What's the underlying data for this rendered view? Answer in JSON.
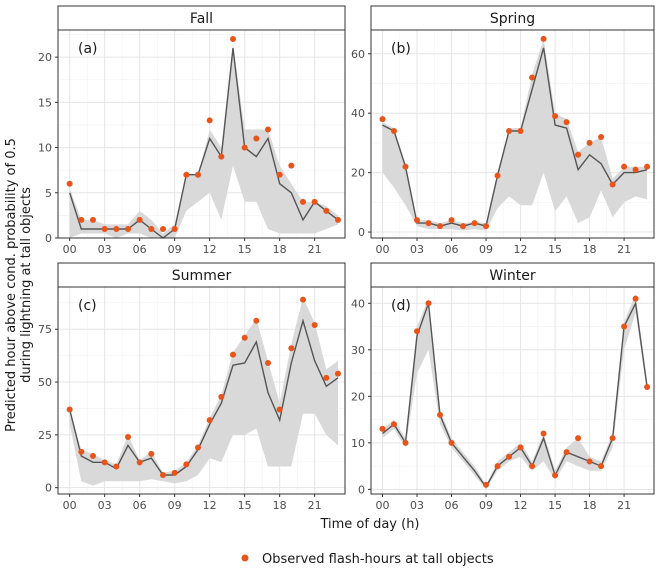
{
  "figure": {
    "xlabel": "Time of day (h)",
    "ylabel_line1": "Predicted hour above cond. probability of 0.5",
    "ylabel_line2": "during lightning at tall objects",
    "legend_label": "Observed flash-hours at tall objects",
    "colors": {
      "ribbon": "#d9d9d9",
      "line": "#555555",
      "point": "#e8541a",
      "grid_major": "#e5e5e5",
      "grid_minor": "#f2f2f2",
      "strip_fill": "#ffffff",
      "border": "#333333"
    }
  },
  "chart_data": [
    {
      "type": "line",
      "title": "Fall",
      "tag": "(a)",
      "xlim": [
        -1,
        23.6
      ],
      "ylim": [
        0,
        23
      ],
      "x_ticks": [
        0,
        3,
        6,
        9,
        12,
        15,
        18,
        21
      ],
      "x_tick_labels": [
        "00",
        "03",
        "06",
        "09",
        "12",
        "15",
        "18",
        "21"
      ],
      "y_ticks": [
        0,
        5,
        10,
        15,
        20
      ],
      "x": [
        0,
        1,
        2,
        3,
        4,
        5,
        6,
        7,
        8,
        9,
        10,
        11,
        12,
        13,
        14,
        15,
        16,
        17,
        18,
        19,
        20,
        21,
        22,
        23
      ],
      "observed": [
        6,
        2,
        2,
        1,
        1,
        1,
        2,
        1,
        1,
        1,
        7,
        7,
        13,
        9,
        22,
        10,
        11,
        12,
        7,
        8,
        4,
        4,
        3,
        2
      ],
      "predicted": [
        5,
        1,
        1,
        1,
        1,
        1,
        2,
        1,
        0,
        1,
        7,
        7,
        11,
        9,
        21,
        10,
        9,
        11,
        6,
        5,
        2,
        4,
        3,
        2
      ],
      "lower": [
        0,
        0.5,
        0.5,
        0.5,
        0,
        0.5,
        0.5,
        0,
        0,
        0,
        3,
        4,
        5,
        2,
        8,
        4,
        4,
        1,
        0.5,
        0.5,
        0.5,
        0.5,
        1,
        1.5
      ],
      "upper": [
        5.5,
        2,
        2,
        1.5,
        1.5,
        1.5,
        3,
        2,
        0.5,
        1.5,
        7,
        7,
        12,
        10,
        21.5,
        12,
        12,
        12,
        8,
        6,
        4,
        4,
        3.5,
        2.5
      ]
    },
    {
      "type": "line",
      "title": "Spring",
      "tag": "(b)",
      "xlim": [
        -1,
        23.6
      ],
      "ylim": [
        -2,
        68
      ],
      "x_ticks": [
        0,
        3,
        6,
        9,
        12,
        15,
        18,
        21
      ],
      "x_tick_labels": [
        "00",
        "03",
        "06",
        "09",
        "12",
        "15",
        "18",
        "21"
      ],
      "y_ticks": [
        0,
        20,
        40,
        60
      ],
      "x": [
        0,
        1,
        2,
        3,
        4,
        5,
        6,
        7,
        8,
        9,
        10,
        11,
        12,
        13,
        14,
        15,
        16,
        17,
        18,
        19,
        20,
        21,
        22,
        23
      ],
      "observed": [
        38,
        34,
        22,
        4,
        3,
        2,
        4,
        2,
        3,
        2,
        19,
        34,
        34,
        52,
        65,
        39,
        37,
        26,
        30,
        32,
        16,
        22,
        21,
        22
      ],
      "predicted": [
        36,
        34,
        22,
        3,
        3,
        2,
        3,
        2,
        3,
        2,
        19,
        34,
        34,
        48,
        62,
        36,
        35,
        21,
        26,
        23,
        16,
        20,
        20,
        21
      ],
      "lower": [
        20,
        15,
        9,
        2,
        1,
        1,
        1,
        0.5,
        1,
        0.5,
        8,
        12,
        9,
        9,
        20,
        7,
        12,
        3,
        5,
        14,
        5,
        10,
        12,
        11
      ],
      "upper": [
        37,
        35,
        23,
        4,
        4,
        3,
        4,
        3,
        3.5,
        3,
        20,
        35,
        35,
        53,
        65,
        40,
        38,
        27,
        30,
        32,
        18,
        22,
        22,
        22
      ]
    },
    {
      "type": "line",
      "title": "Summer",
      "tag": "(c)",
      "xlim": [
        -1,
        23.6
      ],
      "ylim": [
        -3,
        95
      ],
      "x_ticks": [
        0,
        3,
        6,
        9,
        12,
        15,
        18,
        21
      ],
      "x_tick_labels": [
        "00",
        "03",
        "06",
        "09",
        "12",
        "15",
        "18",
        "21"
      ],
      "y_ticks": [
        0,
        25,
        50,
        75
      ],
      "x": [
        0,
        1,
        2,
        3,
        4,
        5,
        6,
        7,
        8,
        9,
        10,
        11,
        12,
        13,
        14,
        15,
        16,
        17,
        18,
        19,
        20,
        21,
        22,
        23
      ],
      "observed": [
        37,
        17,
        15,
        12,
        10,
        24,
        12,
        16,
        6,
        7,
        11,
        19,
        32,
        43,
        63,
        71,
        79,
        59,
        37,
        66,
        89,
        77,
        52,
        54
      ],
      "predicted": [
        37,
        15,
        12,
        12,
        9,
        20,
        12,
        14,
        6,
        6,
        10,
        18,
        30,
        40,
        58,
        59,
        69,
        45,
        32,
        59,
        79,
        60,
        48,
        52
      ],
      "lower": [
        30,
        3,
        1,
        3,
        3,
        3,
        3,
        4,
        3,
        2,
        3,
        6,
        14,
        12,
        25,
        25,
        28,
        10,
        10,
        10,
        35,
        35,
        25,
        20
      ],
      "upper": [
        37,
        18,
        16,
        13,
        11,
        25,
        13,
        17,
        7,
        8,
        12,
        20,
        33,
        44,
        64,
        72,
        80,
        60,
        40,
        68,
        90,
        78,
        56,
        60
      ]
    },
    {
      "type": "line",
      "title": "Winter",
      "tag": "(d)",
      "xlim": [
        -1,
        23.6
      ],
      "ylim": [
        -1,
        43.5
      ],
      "x_ticks": [
        0,
        3,
        6,
        9,
        12,
        15,
        18,
        21
      ],
      "x_tick_labels": [
        "00",
        "03",
        "06",
        "09",
        "12",
        "15",
        "18",
        "21"
      ],
      "y_ticks": [
        0,
        10,
        20,
        30,
        40
      ],
      "x": [
        0,
        1,
        2,
        3,
        4,
        5,
        6,
        7,
        8,
        9,
        10,
        11,
        12,
        13,
        14,
        15,
        16,
        17,
        18,
        19,
        20,
        21,
        22,
        23
      ],
      "observed": [
        13,
        14,
        10,
        34,
        40,
        16,
        10,
        null,
        null,
        1,
        5,
        7,
        9,
        5,
        12,
        3,
        8,
        11,
        6,
        5,
        11,
        35,
        41,
        22
      ],
      "predicted": [
        12,
        14,
        10,
        33,
        40,
        16,
        10,
        7,
        4,
        0.5,
        5,
        7,
        9,
        5,
        11,
        3,
        8,
        7,
        6,
        5,
        11,
        35,
        40,
        22
      ],
      "lower": [
        11,
        13,
        9,
        25,
        30,
        14,
        9,
        6,
        3,
        0,
        4,
        6,
        7,
        4,
        6,
        2,
        6,
        5,
        4,
        4,
        9,
        30,
        38,
        21
      ],
      "upper": [
        13,
        15,
        11,
        35,
        41,
        17,
        11,
        8,
        5,
        1,
        6,
        8,
        10,
        6,
        12,
        4,
        9,
        11,
        7,
        6,
        12,
        36,
        42,
        23
      ]
    }
  ]
}
